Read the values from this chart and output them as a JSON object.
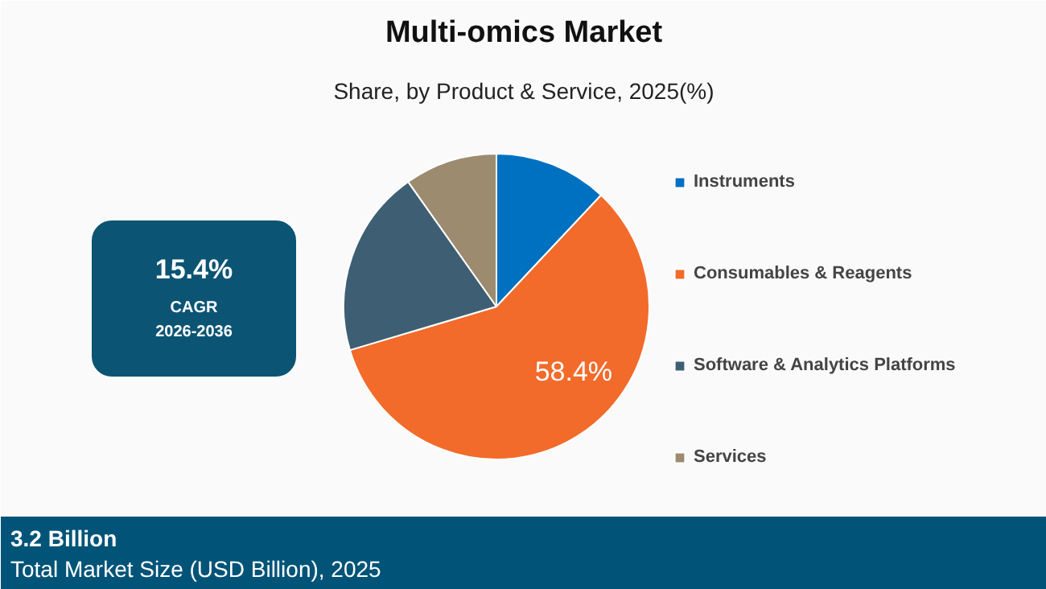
{
  "chart_data": {
    "type": "pie",
    "title": "Multi-omics Market",
    "subtitle": "Share, by Product & Service, 2025(%)",
    "categories": [
      "Instruments",
      "Consumables & Reagents",
      "Software & Analytics Platforms",
      "Services"
    ],
    "values": [
      12.0,
      58.4,
      19.8,
      9.8
    ],
    "colors": [
      "#0070c0",
      "#f26b2a",
      "#3e5f73",
      "#9c8b6e"
    ],
    "value_labels": [
      null,
      "58.4%",
      null,
      null
    ],
    "legend": "right",
    "annotations": [
      "15.4%",
      "CAGR",
      "2026-2036",
      "3.2 Billion",
      "Total Market Size (USD Billion), 2025"
    ]
  }
}
